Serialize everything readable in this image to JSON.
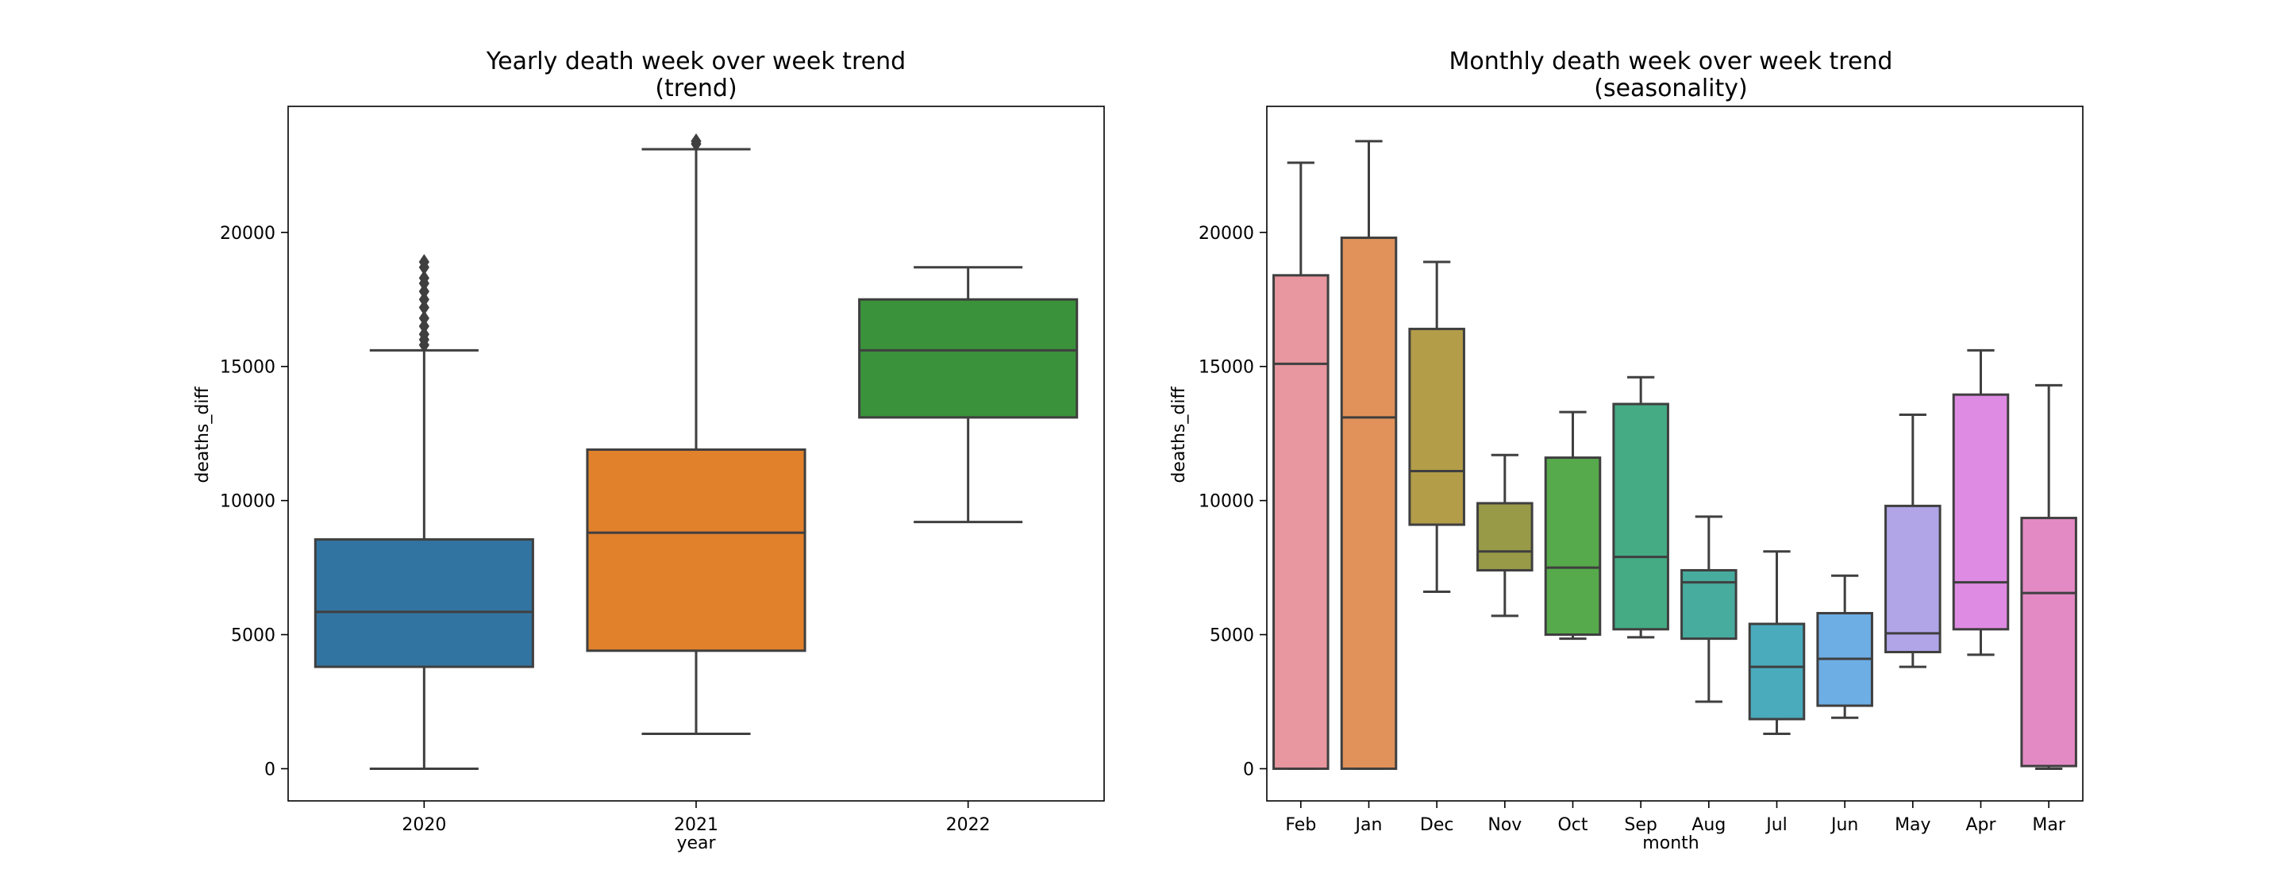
{
  "chart_data": [
    {
      "type": "box",
      "title": [
        "Yearly death week over week trend",
        "(trend)"
      ],
      "xlabel": "year",
      "ylabel": "deaths_diff",
      "ylim": [
        -1200,
        24700
      ],
      "yticks": [
        0,
        5000,
        10000,
        15000,
        20000
      ],
      "grid": false,
      "categories": [
        "2020",
        "2021",
        "2022"
      ],
      "colors": [
        "#3274a1",
        "#e1812c",
        "#3a923a"
      ],
      "boxes": [
        {
          "category": "2020",
          "whisker_low": 0,
          "q1": 3800,
          "median": 5850,
          "q3": 8550,
          "whisker_high": 15600,
          "outliers": [
            15800,
            16000,
            16200,
            16500,
            16800,
            17200,
            17500,
            17800,
            18100,
            18300,
            18700,
            18900
          ]
        },
        {
          "category": "2021",
          "whisker_low": 1300,
          "q1": 4400,
          "median": 8800,
          "q3": 11900,
          "whisker_high": 23100,
          "outliers": [
            23300,
            23400
          ]
        },
        {
          "category": "2022",
          "whisker_low": 9200,
          "q1": 13100,
          "median": 15600,
          "q3": 17500,
          "whisker_high": 18700,
          "outliers": []
        }
      ]
    },
    {
      "type": "box",
      "title": [
        "Monthly death week over week trend",
        "(seasonality)"
      ],
      "xlabel": "month",
      "ylabel": "deaths_diff",
      "ylim": [
        -1200,
        24700
      ],
      "yticks": [
        0,
        5000,
        10000,
        15000,
        20000
      ],
      "grid": false,
      "categories": [
        "Feb",
        "Jan",
        "Dec",
        "Nov",
        "Oct",
        "Sep",
        "Aug",
        "Jul",
        "Jun",
        "May",
        "Apr",
        "Mar"
      ],
      "colors": [
        "#e8969f",
        "#e0925a",
        "#b49d49",
        "#999a47",
        "#57aa4b",
        "#44ab84",
        "#47ab9e",
        "#4aabbd",
        "#6daee4",
        "#b1a5e8",
        "#de8be3",
        "#e38ac5"
      ],
      "boxes": [
        {
          "category": "Feb",
          "whisker_low": 0,
          "q1": 0,
          "median": 15100,
          "q3": 18400,
          "whisker_high": 22600,
          "outliers": []
        },
        {
          "category": "Jan",
          "whisker_low": 0,
          "q1": 0,
          "median": 13100,
          "q3": 19800,
          "whisker_high": 23400,
          "outliers": []
        },
        {
          "category": "Dec",
          "whisker_low": 6600,
          "q1": 9100,
          "median": 11100,
          "q3": 16400,
          "whisker_high": 18900,
          "outliers": []
        },
        {
          "category": "Nov",
          "whisker_low": 5700,
          "q1": 7400,
          "median": 8100,
          "q3": 9900,
          "whisker_high": 11700,
          "outliers": []
        },
        {
          "category": "Oct",
          "whisker_low": 4850,
          "q1": 5000,
          "median": 7500,
          "q3": 11600,
          "whisker_high": 13300,
          "outliers": []
        },
        {
          "category": "Sep",
          "whisker_low": 4900,
          "q1": 5200,
          "median": 7900,
          "q3": 13600,
          "whisker_high": 14600,
          "outliers": []
        },
        {
          "category": "Aug",
          "whisker_low": 2500,
          "q1": 4850,
          "median": 6950,
          "q3": 7400,
          "whisker_high": 9400,
          "outliers": []
        },
        {
          "category": "Jul",
          "whisker_low": 1300,
          "q1": 1850,
          "median": 3800,
          "q3": 5400,
          "whisker_high": 8100,
          "outliers": []
        },
        {
          "category": "Jun",
          "whisker_low": 1900,
          "q1": 2350,
          "median": 4100,
          "q3": 5800,
          "whisker_high": 7200,
          "outliers": []
        },
        {
          "category": "May",
          "whisker_low": 3800,
          "q1": 4350,
          "median": 5050,
          "q3": 9800,
          "whisker_high": 13200,
          "outliers": []
        },
        {
          "category": "Apr",
          "whisker_low": 4250,
          "q1": 5200,
          "median": 6950,
          "q3": 13950,
          "whisker_high": 15600,
          "outliers": []
        },
        {
          "category": "Mar",
          "whisker_low": 0,
          "q1": 100,
          "median": 6550,
          "q3": 9350,
          "whisker_high": 14300,
          "outliers": []
        }
      ]
    }
  ]
}
